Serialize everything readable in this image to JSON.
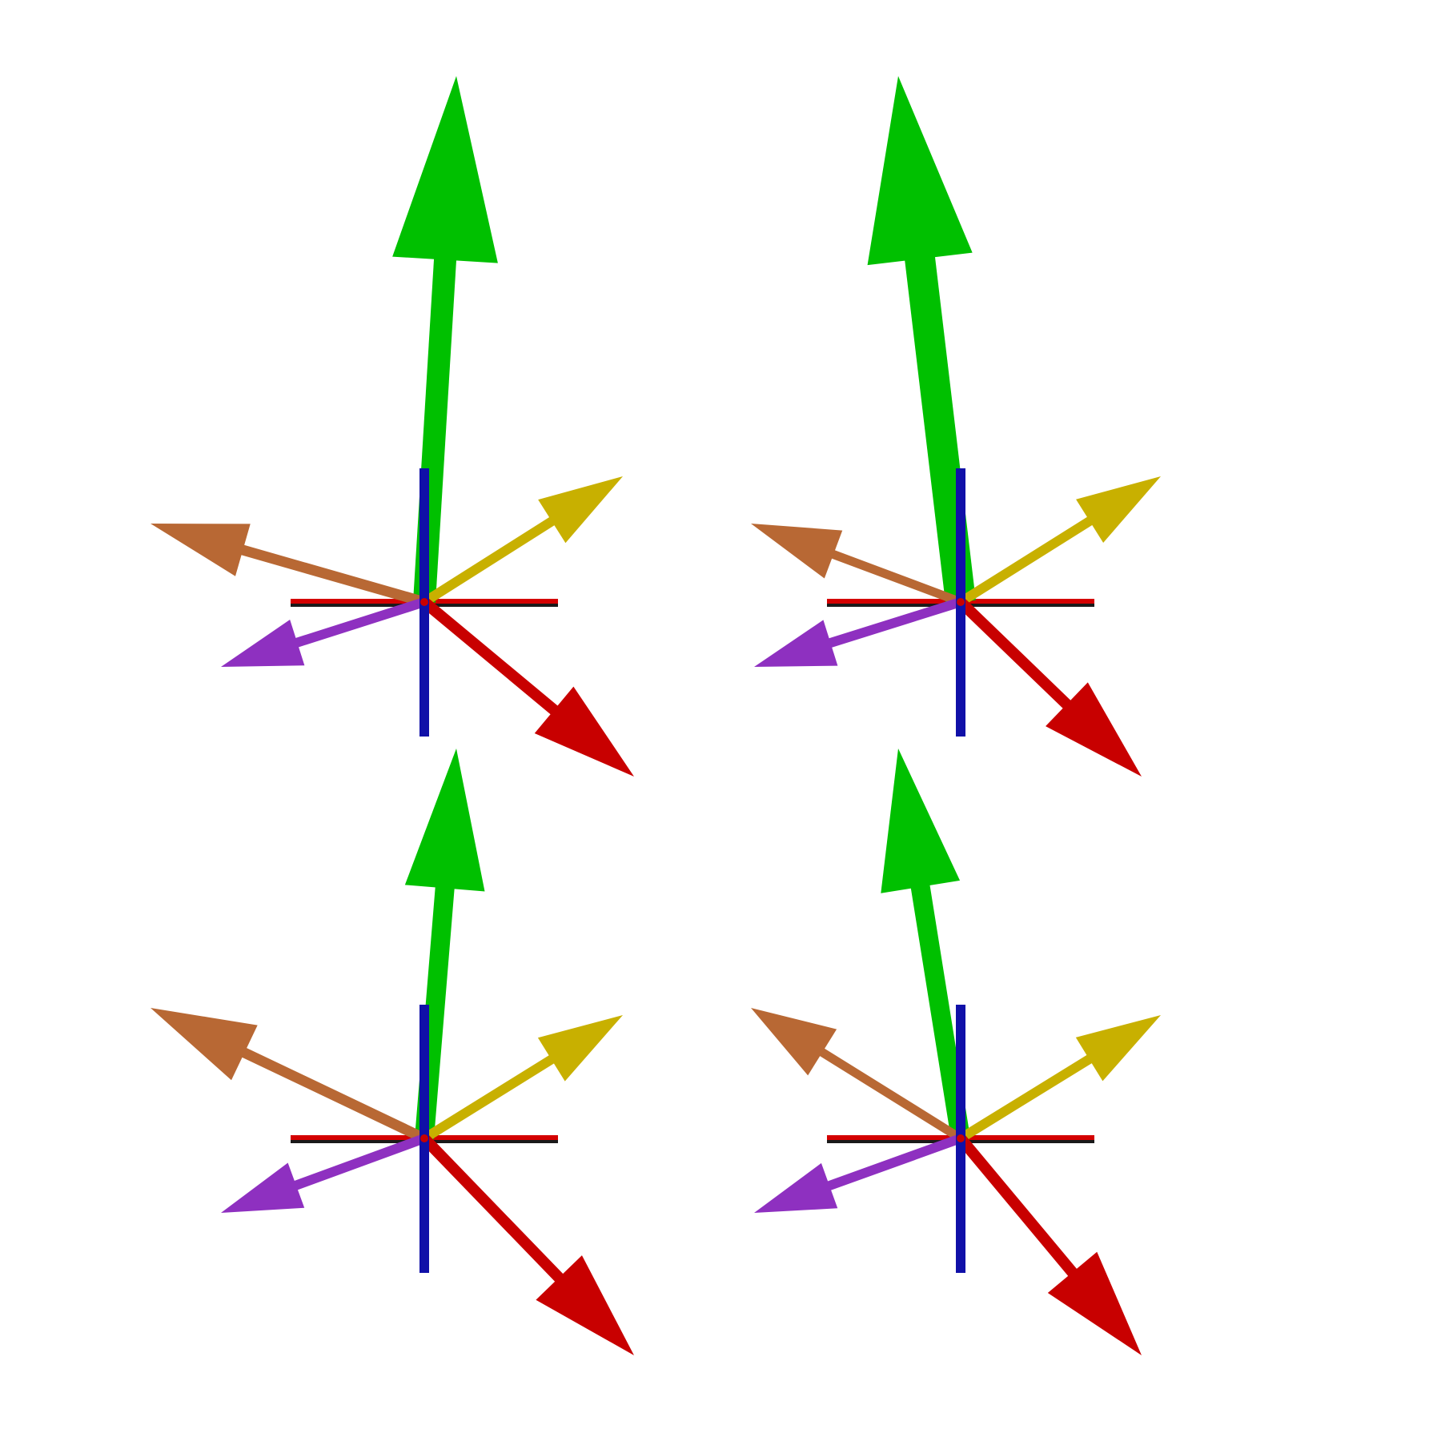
{
  "colors": {
    "background": "#ffffff",
    "axis_x": "#d40000",
    "axis_x_shadow": "#1a1a1a",
    "axis_y": "#1010a8",
    "arrow_green": "#00c000",
    "arrow_orange": "#b86834",
    "arrow_yellow": "#c8b000",
    "arrow_purple": "#8e30c0",
    "arrow_red": "#c80000"
  },
  "panels": [
    {
      "id": "top-left",
      "arrows": [
        {
          "name": "green",
          "color": "arrow_green"
        },
        {
          "name": "orange",
          "color": "arrow_orange"
        },
        {
          "name": "yellow",
          "color": "arrow_yellow"
        },
        {
          "name": "purple",
          "color": "arrow_purple"
        },
        {
          "name": "red",
          "color": "arrow_red"
        }
      ]
    },
    {
      "id": "top-right",
      "arrows": [
        {
          "name": "green",
          "color": "arrow_green"
        },
        {
          "name": "orange",
          "color": "arrow_orange"
        },
        {
          "name": "yellow",
          "color": "arrow_yellow"
        },
        {
          "name": "purple",
          "color": "arrow_purple"
        },
        {
          "name": "red",
          "color": "arrow_red"
        }
      ]
    },
    {
      "id": "bottom-left",
      "arrows": [
        {
          "name": "green",
          "color": "arrow_green"
        },
        {
          "name": "orange",
          "color": "arrow_orange"
        },
        {
          "name": "yellow",
          "color": "arrow_yellow"
        },
        {
          "name": "purple",
          "color": "arrow_purple"
        },
        {
          "name": "red",
          "color": "arrow_red"
        }
      ]
    },
    {
      "id": "bottom-right",
      "arrows": [
        {
          "name": "green",
          "color": "arrow_green"
        },
        {
          "name": "orange",
          "color": "arrow_orange"
        },
        {
          "name": "yellow",
          "color": "arrow_yellow"
        },
        {
          "name": "purple",
          "color": "arrow_purple"
        },
        {
          "name": "red",
          "color": "arrow_red"
        }
      ]
    }
  ]
}
